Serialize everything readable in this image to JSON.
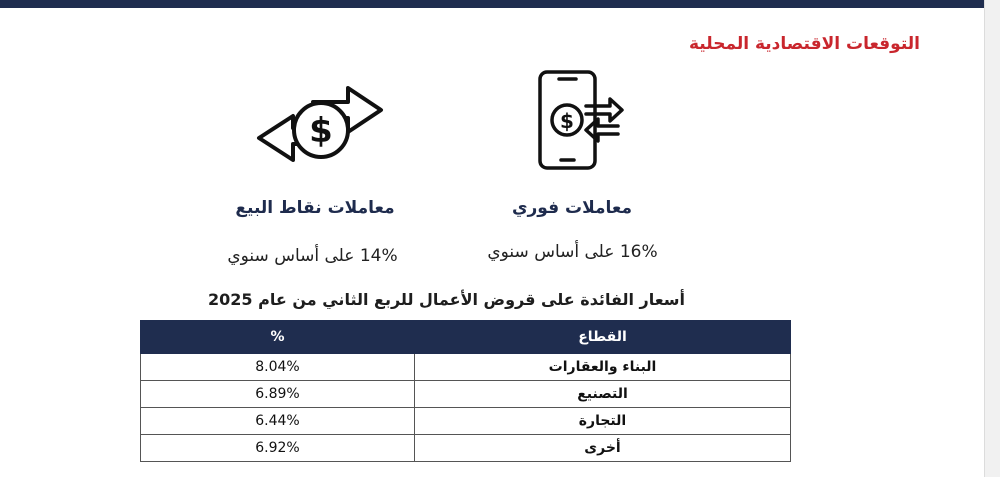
{
  "header": {
    "title": "التوقعات الاقتصادية المحلية"
  },
  "metrics": [
    {
      "label": "معاملات نقاط البيع",
      "value": "14% على أساس سنوي",
      "icon": "exchange-dollar-arrows-icon"
    },
    {
      "label": "معاملات فوري",
      "value": "16% على أساس سنوي",
      "icon": "phone-dollar-transfer-icon"
    }
  ],
  "table": {
    "caption": "أسعار الفائدة على قروض الأعمال للربع الثاني من عام 2025",
    "headers": {
      "percent": "%",
      "sector": "القطاع"
    },
    "rows": [
      {
        "sector": "البناء والعقارات",
        "percent": "8.04%"
      },
      {
        "sector": "التصنيع",
        "percent": "6.89%"
      },
      {
        "sector": "التجارة",
        "percent": "6.44%"
      },
      {
        "sector": "أخرى",
        "percent": "6.92%"
      }
    ]
  },
  "colors": {
    "header_bar": "#1f2d4f",
    "title_red": "#c9262d",
    "label_navy": "#1e2b4d"
  }
}
